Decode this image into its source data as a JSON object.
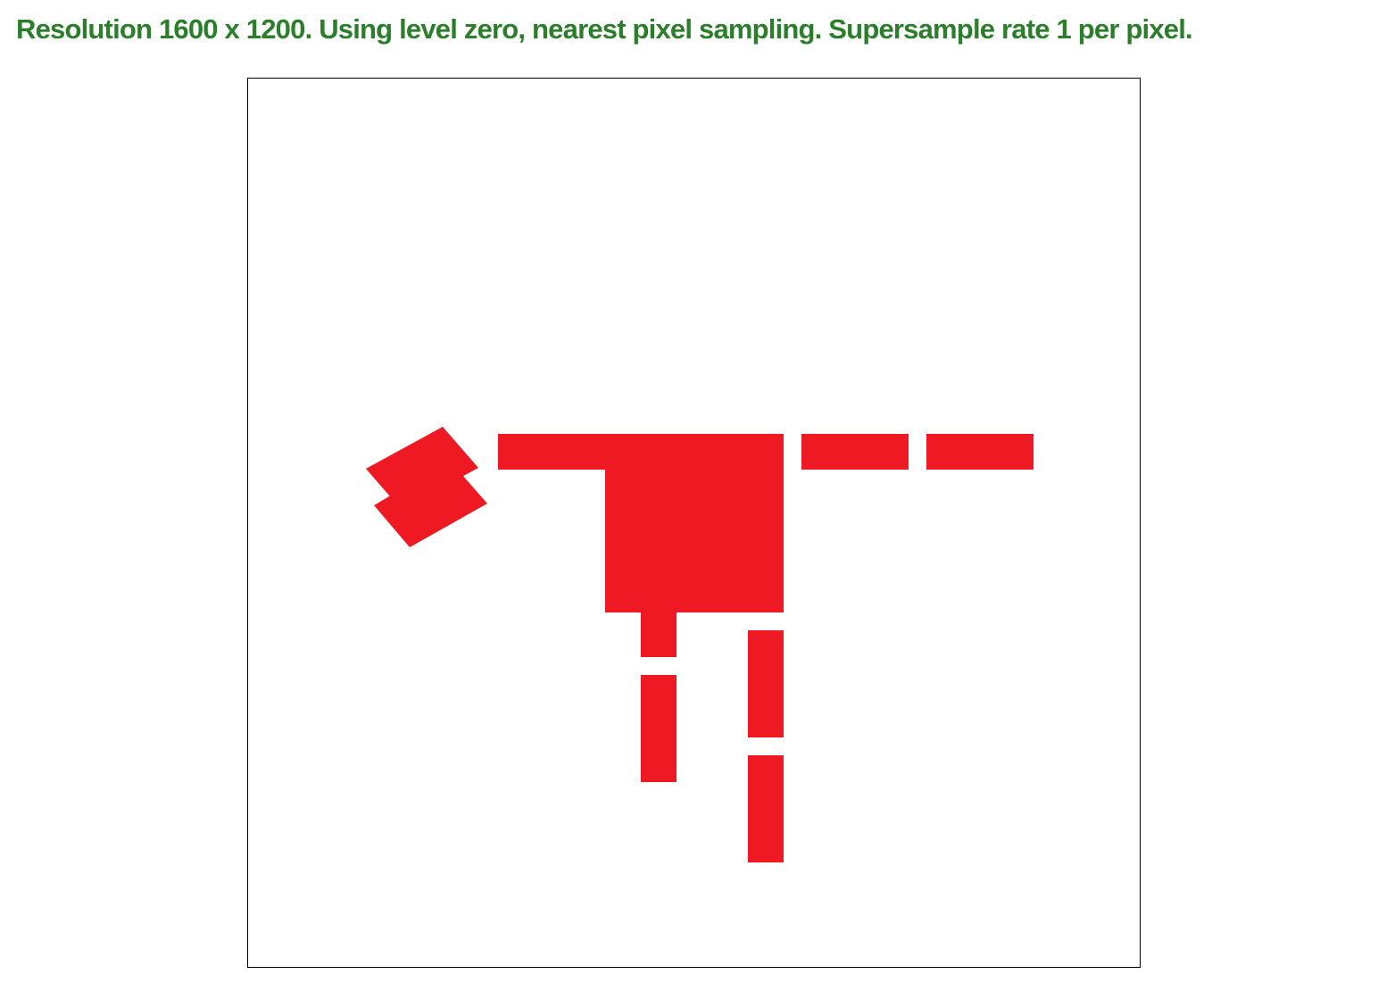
{
  "caption": {
    "text": "Resolution 1600 x 1200. Using level zero, nearest pixel sampling. Supersample rate 1 per pixel.",
    "color": "#2b7f2b"
  },
  "scene": {
    "background": "#ffffff",
    "border_color": "#000000",
    "shape_color": "#ef1923",
    "shapes": [
      "rotated-square-top",
      "rotated-square-bottom",
      "top-bar-left",
      "center-block",
      "top-bar-middle",
      "top-bar-right",
      "left-leg-upper",
      "left-leg-lower",
      "right-leg-upper",
      "right-leg-lower"
    ]
  }
}
